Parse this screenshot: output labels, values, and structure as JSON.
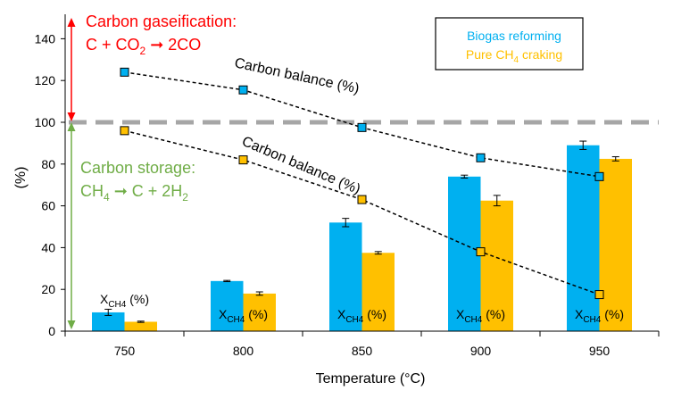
{
  "chart_data": {
    "type": "bar",
    "xlabel": "Temperature (°C)",
    "ylabel": "(%)",
    "ylim": [
      0,
      150
    ],
    "yticks": [
      0,
      20,
      40,
      60,
      80,
      100,
      120,
      140
    ],
    "categories": [
      "750",
      "800",
      "850",
      "900",
      "950"
    ],
    "grid": false,
    "legend_position": "top-right",
    "series": [
      {
        "name": "Biogas reforming",
        "color": "#00b0f0",
        "values": [
          9,
          24,
          52,
          74,
          89
        ],
        "errors": [
          1.5,
          0.3,
          2.0,
          0.7,
          2.0
        ]
      },
      {
        "name": "Pure CH4 craking",
        "color": "#ffc000",
        "values": [
          4.5,
          18,
          37.5,
          62.5,
          82.5
        ],
        "errors": [
          0.3,
          0.8,
          0.6,
          2.5,
          1.0
        ]
      }
    ],
    "carbon_balance_series": [
      {
        "name": "Biogas reforming",
        "values": [
          124,
          115.5,
          97.5,
          83,
          74
        ],
        "color": "#00b0f0"
      },
      {
        "name": "Pure CH4 craking",
        "values": [
          96,
          82,
          63,
          38,
          17.5
        ],
        "color": "#ffc000"
      }
    ],
    "reference_line": {
      "value": 100,
      "color": "#a6a6a6"
    },
    "bar_label": "X",
    "bar_label_sub": "CH4",
    "bar_label_suffix": " (%)",
    "carbon_balance_label": "Carbon balance (%)"
  },
  "annotations": {
    "gasification_title": "Carbon gaseification:",
    "gasification_eq_a": "C + CO",
    "gasification_eq_sub": "2",
    "gasification_eq_b": " ➞ 2CO",
    "storage_title": "Carbon storage:",
    "storage_eq_a": "CH",
    "storage_eq_sub1": "4",
    "storage_eq_b": " ➞ C + 2H",
    "storage_eq_sub2": "2",
    "gasification_color": "#ff0000",
    "storage_color": "#70ad47"
  },
  "legend": {
    "item1": "Biogas reforming",
    "item2_a": "Pure CH",
    "item2_sub": "4",
    "item2_b": " craking"
  }
}
